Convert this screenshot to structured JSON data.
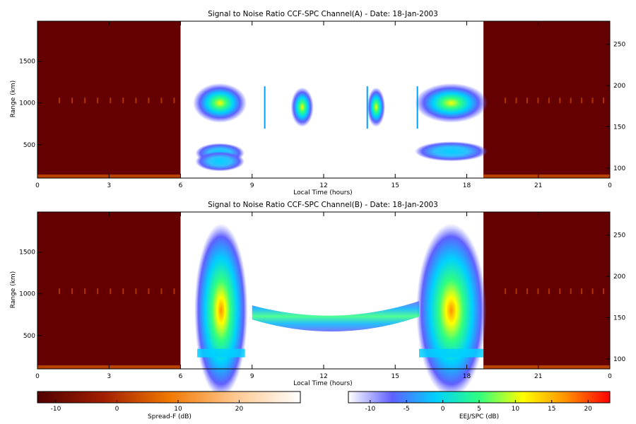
{
  "chart_data": [
    {
      "type": "heatmap",
      "title": "Signal to Noise Ratio CCF-SPC Channel(A) - Date: 18-Jan-2003",
      "xlabel": "Local Time (hours)",
      "ylabel": "Range (km)",
      "x_ticks": [
        "0",
        "3",
        "6",
        "9",
        "12",
        "15",
        "18",
        "21",
        "0"
      ],
      "xlim": [
        0,
        24
      ],
      "y_ticks": [
        "500",
        "1000",
        "1500"
      ],
      "ylim": [
        100,
        1980
      ],
      "y2_ticks": [
        "100",
        "150",
        "200",
        "250"
      ],
      "y2lim": [
        88,
        278
      ],
      "spread_f_intervals_hours": [
        [
          0,
          6
        ],
        [
          18.7,
          24
        ]
      ],
      "echo_interval_hours": [
        6,
        18.7
      ],
      "echo_blobs": [
        {
          "t_start": 6.7,
          "t_end": 8.6,
          "range_km": 1000,
          "peak_db": 5
        },
        {
          "t_start": 6.8,
          "t_end": 8.5,
          "range_km": 400,
          "peak_db": 3
        },
        {
          "t_start": 6.8,
          "t_end": 8.5,
          "range_km": 300,
          "peak_db": 2
        },
        {
          "t_start": 10.8,
          "t_end": 11.4,
          "range_km": 950,
          "peak_db": 5
        },
        {
          "t_start": 14.0,
          "t_end": 14.4,
          "range_km": 950,
          "peak_db": 4
        },
        {
          "t_start": 16.0,
          "t_end": 18.7,
          "range_km": 1000,
          "peak_db": 4
        },
        {
          "t_start": 16.0,
          "t_end": 18.7,
          "range_km": 420,
          "peak_db": 2
        }
      ]
    },
    {
      "type": "heatmap",
      "title": "Signal to Noise Ratio CCF-SPC Channel(B) - Date: 18-Jan-2003",
      "xlabel": "Local Time (hours)",
      "ylabel": "Range (km)",
      "x_ticks": [
        "0",
        "3",
        "6",
        "9",
        "12",
        "15",
        "18",
        "21",
        "0"
      ],
      "xlim": [
        0,
        24
      ],
      "y_ticks": [
        "500",
        "1000",
        "1500"
      ],
      "ylim": [
        100,
        1980
      ],
      "y2_ticks": [
        "100",
        "150",
        "200",
        "250"
      ],
      "y2lim": [
        88,
        278
      ],
      "spread_f_intervals_hours": [
        [
          0,
          6
        ],
        [
          18.7,
          24
        ]
      ],
      "echo_interval_hours": [
        6,
        18.7
      ],
      "echo_blobs": [
        {
          "t_start": 6.7,
          "t_end": 8.7,
          "range_km": 800,
          "peak_db": 17
        },
        {
          "t_start": 16.0,
          "t_end": 18.7,
          "range_km": 800,
          "peak_db": 15
        },
        {
          "t_start": 9.0,
          "t_end": 16.0,
          "range_km": 760,
          "peak_db": 2
        }
      ]
    },
    {
      "type": "heatmap",
      "title": "Spread-F colorbar",
      "label": "Spread-F (dB)",
      "ticks": [
        "-10",
        "0",
        "10",
        "20"
      ],
      "range": [
        -13,
        30
      ]
    },
    {
      "type": "heatmap",
      "title": "EEJ/SPC colorbar",
      "label": "EEJ/SPC (dB)",
      "ticks": [
        "-10",
        "-5",
        "0",
        "5",
        "10",
        "15",
        "20"
      ],
      "range": [
        -13,
        23
      ]
    }
  ],
  "colors": {
    "spread_f_background": "#640000",
    "spread_f_scale": [
      "#500000",
      "#a01e00",
      "#f07800",
      "#ffc890",
      "#ffffff"
    ],
    "eej_scale": [
      "#ffffff",
      "#6060ff",
      "#00d0ff",
      "#30ff80",
      "#ffff00",
      "#ff9000",
      "#ff0000"
    ]
  }
}
